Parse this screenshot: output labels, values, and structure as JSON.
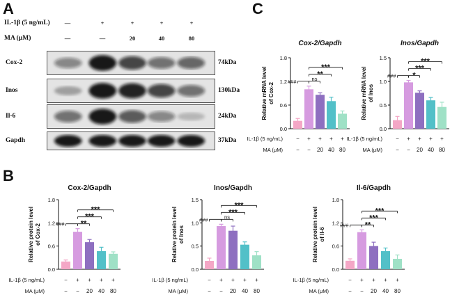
{
  "panels": {
    "a": "A",
    "b": "B",
    "c": "C"
  },
  "western_blot": {
    "conditions": [
      {
        "label": "IL-1β (5 ng/mL)",
        "values": [
          "—",
          "+",
          "+",
          "+",
          "+"
        ]
      },
      {
        "label": "MA (μM)",
        "values": [
          "—",
          "—",
          "20",
          "40",
          "80"
        ]
      }
    ],
    "rows": [
      {
        "protein": "Cox-2",
        "size": "74kDa",
        "intensity": [
          0.45,
          0.95,
          0.75,
          0.55,
          0.6
        ]
      },
      {
        "protein": "Inos",
        "size": "130kDa",
        "intensity": [
          0.3,
          0.95,
          0.9,
          0.75,
          0.55
        ]
      },
      {
        "protein": "Il-6",
        "size": "24kDa",
        "intensity": [
          0.55,
          0.95,
          0.65,
          0.45,
          0.2
        ]
      },
      {
        "protein": "Gapdh",
        "size": "37kDa",
        "intensity": [
          0.95,
          0.95,
          0.95,
          0.95,
          0.95
        ]
      }
    ]
  },
  "x_conditions": {
    "il1b": {
      "label": "IL-1β (5 ng/mL)",
      "values": [
        "−",
        "+",
        "+",
        "+",
        "+"
      ]
    },
    "ma": {
      "label": "MA (μM)",
      "values": [
        "−",
        "−",
        "20",
        "40",
        "80"
      ]
    }
  },
  "bar_colors": [
    "#f4a7c6",
    "#d69be0",
    "#8e6fc0",
    "#52c0c8",
    "#9fe1c6"
  ],
  "chart_data": [
    {
      "id": "c-cox2",
      "type": "bar",
      "title": "Cox-2/Gapdh",
      "title_italic": true,
      "ylabel": "Relative mRNA level of Cox-2",
      "ylabel_lines": [
        "Relative mRNA level",
        "of Cox-2"
      ],
      "ylim": [
        0,
        1.8
      ],
      "yticks": [
        "0.0",
        "0.6",
        "1.2",
        "1.8"
      ],
      "values": [
        0.2,
        1.0,
        0.86,
        0.7,
        0.38
      ],
      "errors": [
        0.06,
        0.08,
        0.05,
        0.1,
        0.07
      ],
      "significance": [
        {
          "from": 1,
          "to": 2,
          "label": "###",
          "level": 0
        },
        {
          "from": 2,
          "to": 3,
          "label": "ns",
          "level": 0
        },
        {
          "from": 2,
          "to": 4,
          "label": "**",
          "level": 1
        },
        {
          "from": 2,
          "to": 5,
          "label": "***",
          "level": 2
        }
      ]
    },
    {
      "id": "c-inos",
      "type": "bar",
      "title": "Inos/Gapdh",
      "title_italic": true,
      "ylabel": "Relative mRNA level of Inos",
      "ylabel_lines": [
        "Relative mRNA level",
        "of Inos"
      ],
      "ylim": [
        0,
        1.5
      ],
      "yticks": [
        "0.0",
        "0.5",
        "1.0",
        "1.5"
      ],
      "values": [
        0.18,
        0.98,
        0.76,
        0.6,
        0.46
      ],
      "errors": [
        0.08,
        0.04,
        0.04,
        0.06,
        0.1
      ],
      "significance": [
        {
          "from": 1,
          "to": 2,
          "label": "###",
          "level": 0
        },
        {
          "from": 2,
          "to": 3,
          "label": "*",
          "level": 0
        },
        {
          "from": 2,
          "to": 4,
          "label": "***",
          "level": 1
        },
        {
          "from": 2,
          "to": 5,
          "label": "***",
          "level": 2
        }
      ]
    },
    {
      "id": "b-cox2",
      "type": "bar",
      "title": "Cox-2/Gapdh",
      "title_italic": false,
      "ylabel": "Relative protein level of Cox-2",
      "ylabel_lines": [
        "Relative protein level",
        "of Cox-2"
      ],
      "ylim": [
        0,
        1.8
      ],
      "yticks": [
        "0.0",
        "0.6",
        "1.2",
        "1.8"
      ],
      "values": [
        0.2,
        0.97,
        0.7,
        0.47,
        0.4
      ],
      "errors": [
        0.04,
        0.08,
        0.07,
        0.1,
        0.05
      ],
      "significance": [
        {
          "from": 1,
          "to": 2,
          "label": "###",
          "level": 0
        },
        {
          "from": 2,
          "to": 3,
          "label": "**",
          "level": 0
        },
        {
          "from": 2,
          "to": 4,
          "label": "***",
          "level": 1
        },
        {
          "from": 2,
          "to": 5,
          "label": "***",
          "level": 2
        }
      ]
    },
    {
      "id": "b-inos",
      "type": "bar",
      "title": "Inos/Gapdh",
      "title_italic": false,
      "ylabel": "Relative protein level of Inos",
      "ylabel_lines": [
        "Relative protein level",
        "of Inos"
      ],
      "ylim": [
        0,
        1.5
      ],
      "yticks": [
        "0.0",
        "0.5",
        "1.0",
        "1.5"
      ],
      "values": [
        0.18,
        0.93,
        0.83,
        0.53,
        0.3
      ],
      "errors": [
        0.06,
        0.04,
        0.1,
        0.06,
        0.08
      ],
      "significance": [
        {
          "from": 1,
          "to": 2,
          "label": "###",
          "level": 0
        },
        {
          "from": 2,
          "to": 3,
          "label": "ns",
          "level": 0
        },
        {
          "from": 2,
          "to": 4,
          "label": "***",
          "level": 1
        },
        {
          "from": 2,
          "to": 5,
          "label": "***",
          "level": 2
        }
      ]
    },
    {
      "id": "b-il6",
      "type": "bar",
      "title": "Il-6/Gapdh",
      "title_italic": false,
      "ylabel": "Relative protein level of Il-6",
      "ylabel_lines": [
        "Relative protein level",
        "of Il-6"
      ],
      "ylim": [
        0,
        1.8
      ],
      "yticks": [
        "0.0",
        "0.6",
        "1.2",
        "1.8"
      ],
      "values": [
        0.22,
        0.96,
        0.6,
        0.47,
        0.27
      ],
      "errors": [
        0.05,
        0.06,
        0.1,
        0.08,
        0.1
      ],
      "significance": [
        {
          "from": 1,
          "to": 2,
          "label": "###",
          "level": 0
        },
        {
          "from": 2,
          "to": 3,
          "label": "**",
          "level": 0
        },
        {
          "from": 2,
          "to": 4,
          "label": "***",
          "level": 1
        },
        {
          "from": 2,
          "to": 5,
          "label": "***",
          "level": 2
        }
      ]
    }
  ]
}
